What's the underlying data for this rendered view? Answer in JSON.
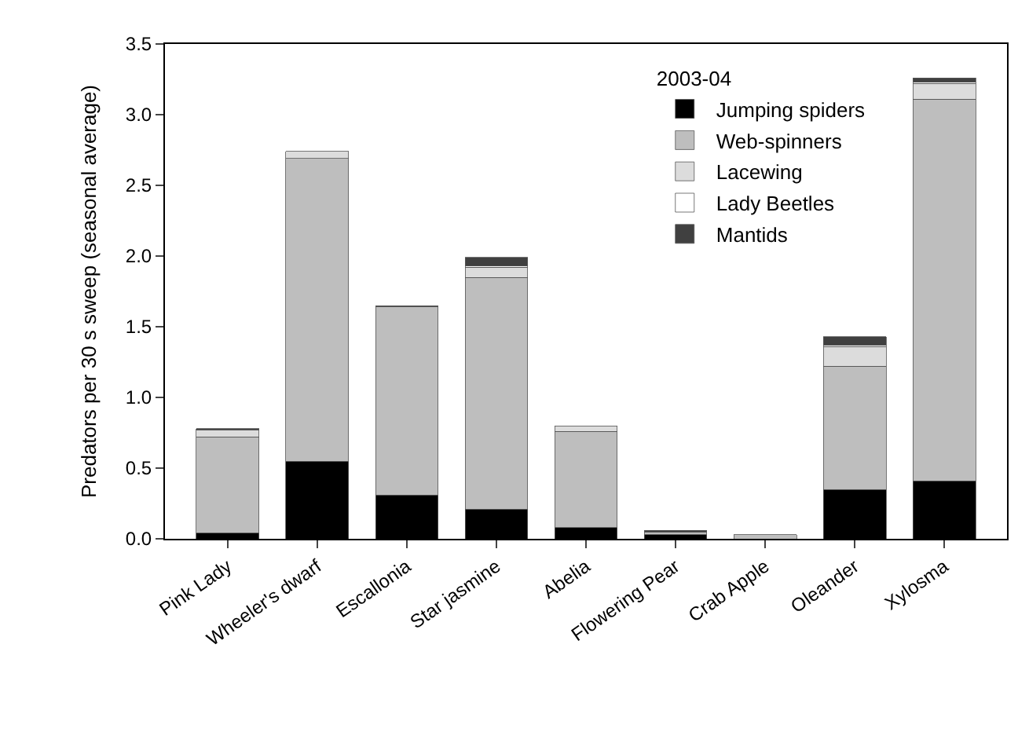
{
  "chart_data": {
    "type": "bar",
    "stacked": true,
    "ylabel": "Predators per 30 s sweep (seasonal average)",
    "legend_title": "2003-04",
    "legend": "top right",
    "categories": [
      "Pink Lady",
      "Wheeler's dwarf",
      "Escallonia",
      "Star jasmine",
      "Abelia",
      "Flowering Pear",
      "Crab Apple",
      "Oleander",
      "Xylosma"
    ],
    "series": [
      {
        "name": "Jumping spiders",
        "color": "#000000",
        "values": [
          0.04,
          0.55,
          0.31,
          0.21,
          0.08,
          0.03,
          null,
          0.35,
          0.41
        ]
      },
      {
        "name": "Web-spinners",
        "color": "#bebebe",
        "values": [
          0.68,
          2.14,
          1.33,
          1.64,
          0.68,
          0.02,
          0.03,
          0.87,
          2.7
        ]
      },
      {
        "name": "Lacewing",
        "color": "#dcdcdc",
        "values": [
          0.05,
          0.05,
          null,
          0.07,
          0.04,
          null,
          null,
          0.14,
          0.11
        ]
      },
      {
        "name": "Lady Beetles",
        "color": "#ffffff",
        "values": [
          null,
          null,
          null,
          0.01,
          null,
          null,
          null,
          0.01,
          0.01
        ]
      },
      {
        "name": "Mantids",
        "color": "#404040",
        "values": [
          0.01,
          null,
          0.01,
          0.06,
          null,
          0.01,
          null,
          0.06,
          0.03
        ]
      }
    ],
    "ylim": [
      0,
      3.5
    ],
    "yticks": [
      {
        "value": 0,
        "label": "0.0"
      },
      {
        "value": 0.5,
        "label": "0.5"
      },
      {
        "value": 1,
        "label": "1.0"
      },
      {
        "value": 1.5,
        "label": "1.5"
      },
      {
        "value": 2,
        "label": "2.0"
      },
      {
        "value": 2.5,
        "label": "2.5"
      },
      {
        "value": 3,
        "label": "3.0"
      },
      {
        "value": 3.5,
        "label": "3.5"
      }
    ]
  }
}
